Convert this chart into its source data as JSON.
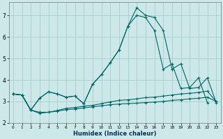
{
  "xlabel": "Humidex (Indice chaleur)",
  "background_color": "#cce8e8",
  "grid_color": "#aacccc",
  "line_color": "#006666",
  "xlim": [
    -0.5,
    23.5
  ],
  "ylim": [
    2.0,
    7.6
  ],
  "xticks": [
    0,
    1,
    2,
    3,
    4,
    5,
    6,
    7,
    8,
    9,
    10,
    11,
    12,
    13,
    14,
    15,
    16,
    17,
    18,
    19,
    20,
    21,
    22,
    23
  ],
  "yticks": [
    2,
    3,
    4,
    5,
    6,
    7
  ],
  "lines": [
    {
      "x": [
        0,
        1,
        2,
        3,
        4,
        5,
        6,
        7,
        8,
        9,
        10,
        11,
        12,
        13,
        14,
        15,
        16,
        17,
        18,
        19,
        20,
        21,
        22,
        23
      ],
      "y": [
        3.35,
        3.3,
        2.6,
        2.5,
        2.5,
        2.55,
        2.62,
        2.65,
        2.7,
        2.75,
        2.8,
        2.85,
        2.88,
        2.9,
        2.92,
        2.95,
        2.97,
        3.0,
        3.05,
        3.08,
        3.12,
        3.15,
        3.2,
        3.0
      ]
    },
    {
      "x": [
        0,
        1,
        2,
        3,
        4,
        5,
        6,
        7,
        8,
        9,
        10,
        11,
        12,
        13,
        14,
        15,
        16,
        17,
        18,
        19,
        20,
        21,
        22,
        23
      ],
      "y": [
        3.35,
        3.3,
        2.6,
        2.45,
        2.5,
        2.58,
        2.68,
        2.72,
        2.78,
        2.82,
        2.9,
        2.98,
        3.05,
        3.08,
        3.12,
        3.18,
        3.2,
        3.25,
        3.3,
        3.35,
        3.38,
        3.42,
        3.48,
        3.0
      ]
    },
    {
      "x": [
        0,
        1,
        2,
        3,
        4,
        5,
        6,
        7,
        8,
        9,
        10,
        11,
        12,
        13,
        14,
        15,
        16,
        17,
        18,
        19,
        20,
        21,
        22,
        23
      ],
      "y": [
        3.35,
        3.3,
        2.6,
        3.15,
        3.45,
        3.35,
        3.2,
        3.25,
        2.9,
        3.8,
        4.25,
        4.8,
        5.4,
        6.5,
        7.0,
        6.9,
        6.3,
        4.5,
        4.75,
        3.6,
        3.65,
        4.1,
        2.95,
        null
      ]
    },
    {
      "x": [
        0,
        1,
        2,
        3,
        4,
        5,
        6,
        7,
        8,
        9,
        10,
        11,
        12,
        13,
        14,
        15,
        16,
        17,
        18,
        19,
        20,
        21,
        22,
        23
      ],
      "y": [
        3.35,
        3.3,
        2.6,
        3.15,
        3.45,
        3.35,
        3.2,
        3.25,
        2.9,
        3.8,
        4.25,
        4.8,
        5.4,
        6.5,
        7.35,
        7.0,
        6.9,
        6.3,
        4.5,
        4.75,
        3.6,
        3.65,
        4.1,
        2.95
      ]
    }
  ]
}
